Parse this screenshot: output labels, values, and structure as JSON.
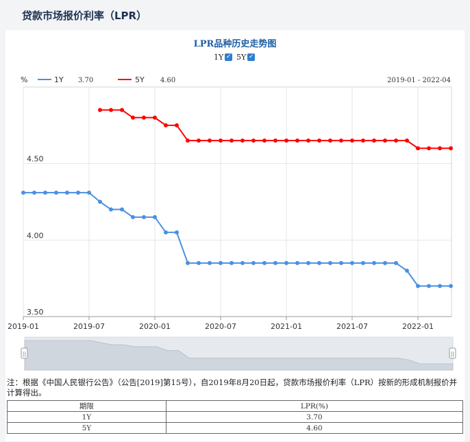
{
  "page": {
    "title": "贷款市场报价利率（LPR）"
  },
  "chart_data": {
    "type": "line",
    "title": "LPR品种历史走势图",
    "unit": "%",
    "date_range": "2019-01 - 2022-04",
    "toggles": [
      {
        "label": "1Y",
        "checked": true
      },
      {
        "label": "5Y",
        "checked": true
      }
    ],
    "legend": [
      {
        "name": "1Y",
        "latest": "3.70",
        "color": "#4a90e2"
      },
      {
        "name": "5Y",
        "latest": "4.60",
        "color": "#ff0000"
      }
    ],
    "x": [
      "2019-01",
      "2019-02",
      "2019-03",
      "2019-04",
      "2019-05",
      "2019-06",
      "2019-07",
      "2019-08",
      "2019-09",
      "2019-10",
      "2019-11",
      "2019-12",
      "2020-01",
      "2020-02",
      "2020-03",
      "2020-04",
      "2020-05",
      "2020-06",
      "2020-07",
      "2020-08",
      "2020-09",
      "2020-10",
      "2020-11",
      "2020-12",
      "2021-01",
      "2021-02",
      "2021-03",
      "2021-04",
      "2021-05",
      "2021-06",
      "2021-07",
      "2021-08",
      "2021-09",
      "2021-10",
      "2021-11",
      "2021-12",
      "2022-01",
      "2022-02",
      "2022-03",
      "2022-04"
    ],
    "x_tick_labels": [
      "2019-01",
      "2019-07",
      "2020-01",
      "2020-07",
      "2021-01",
      "2021-07",
      "2022-01"
    ],
    "y_tick_labels": [
      "3.50",
      "4.00",
      "4.50"
    ],
    "ylim": [
      3.5,
      5.0
    ],
    "grid": true,
    "series": [
      {
        "name": "1Y",
        "color": "#4a90e2",
        "values": [
          4.31,
          4.31,
          4.31,
          4.31,
          4.31,
          4.31,
          4.31,
          4.25,
          4.2,
          4.2,
          4.15,
          4.15,
          4.15,
          4.05,
          4.05,
          3.85,
          3.85,
          3.85,
          3.85,
          3.85,
          3.85,
          3.85,
          3.85,
          3.85,
          3.85,
          3.85,
          3.85,
          3.85,
          3.85,
          3.85,
          3.85,
          3.85,
          3.85,
          3.85,
          3.85,
          3.8,
          3.7,
          3.7,
          3.7,
          3.7
        ]
      },
      {
        "name": "5Y",
        "color": "#ff0000",
        "values": [
          null,
          null,
          null,
          null,
          null,
          null,
          null,
          4.85,
          4.85,
          4.85,
          4.8,
          4.8,
          4.8,
          4.75,
          4.75,
          4.65,
          4.65,
          4.65,
          4.65,
          4.65,
          4.65,
          4.65,
          4.65,
          4.65,
          4.65,
          4.65,
          4.65,
          4.65,
          4.65,
          4.65,
          4.65,
          4.65,
          4.65,
          4.65,
          4.65,
          4.65,
          4.6,
          4.6,
          4.6,
          4.6
        ]
      }
    ]
  },
  "note": "注：根据《中国人民银行公告》（公告[2019]第15号），自2019年8月20日起，贷款市场报价利率（LPR）按新的形成机制报价并计算得出。",
  "table": {
    "headers": [
      "期限",
      "LPR(%)"
    ],
    "rows": [
      [
        "1Y",
        "3.70"
      ],
      [
        "5Y",
        "4.60"
      ]
    ]
  }
}
